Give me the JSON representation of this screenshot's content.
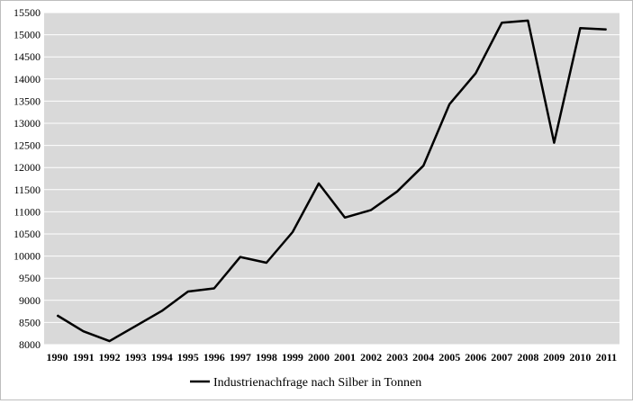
{
  "chart_data": {
    "type": "line",
    "title": "",
    "xlabel": "",
    "ylabel": "",
    "categories": [
      "1990",
      "1991",
      "1992",
      "1993",
      "1994",
      "1995",
      "1996",
      "1997",
      "1998",
      "1999",
      "2000",
      "2001",
      "2002",
      "2003",
      "2004",
      "2005",
      "2006",
      "2007",
      "2008",
      "2009",
      "2010",
      "2011"
    ],
    "series": [
      {
        "name": "Industrienachfrage nach Silber in Tonnen",
        "values": [
          8660,
          8300,
          8080,
          8420,
          8760,
          9200,
          9270,
          9980,
          9850,
          10540,
          11640,
          10870,
          11040,
          11460,
          12040,
          13430,
          14130,
          15270,
          15320,
          12560,
          15150,
          15120
        ],
        "color": "#000000"
      }
    ],
    "ylim": [
      8000,
      15500
    ],
    "yticks": [
      8000,
      8500,
      9000,
      9500,
      10000,
      10500,
      11000,
      11500,
      12000,
      12500,
      13000,
      13500,
      14000,
      14500,
      15000,
      15500
    ],
    "grid": true,
    "legend_position": "bottom",
    "plot_background": "#d9d9d9",
    "grid_color": "#ffffff"
  }
}
